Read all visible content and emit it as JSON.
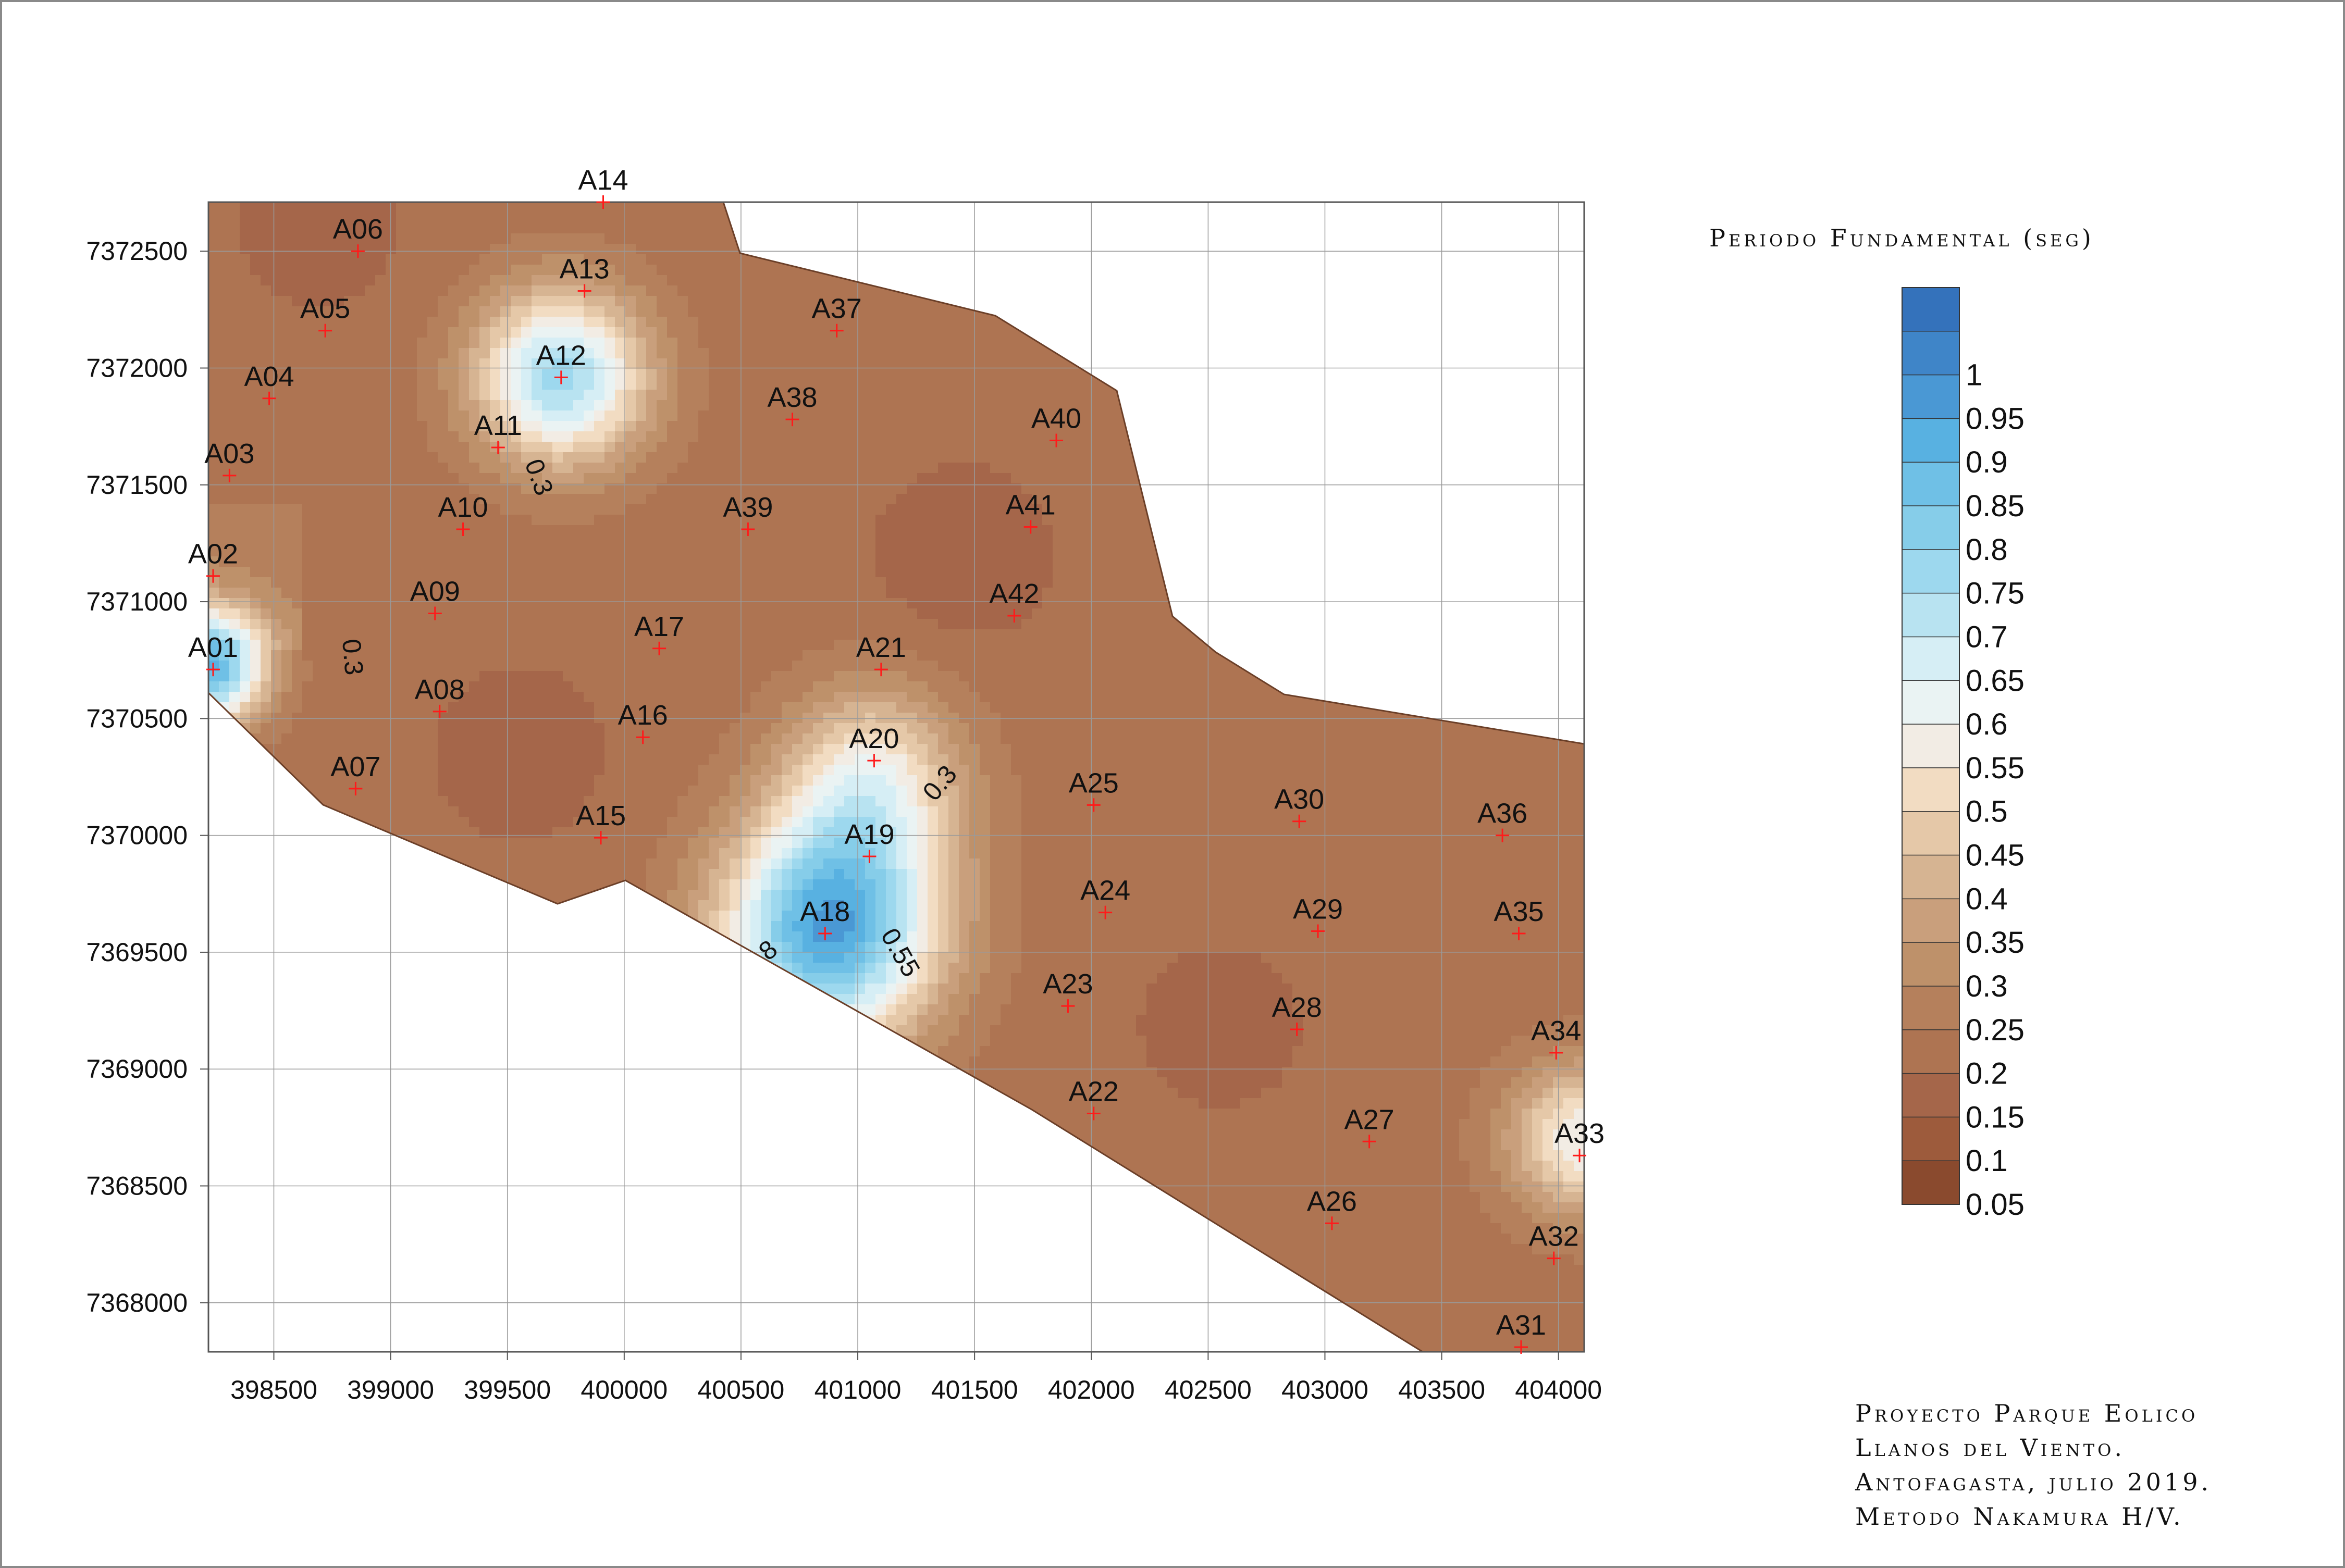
{
  "legend": {
    "title": "Periodo Fundamental (seg)",
    "levels": [
      "0.05",
      "0.1",
      "0.15",
      "0.2",
      "0.25",
      "0.3",
      "0.35",
      "0.4",
      "0.45",
      "0.5",
      "0.55",
      "0.6",
      "0.65",
      "0.7",
      "0.75",
      "0.8",
      "0.85",
      "0.9",
      "0.95",
      "1"
    ],
    "colors": [
      "#8a4a2e",
      "#9d5b3c",
      "#a5664a",
      "#ae7452",
      "#b5805c",
      "#be916a",
      "#c99f7c",
      "#d6b492",
      "#e5c8a8",
      "#f2dcc2",
      "#f2ece4",
      "#eaf3f3",
      "#d6eef5",
      "#b8e3f1",
      "#9dd8ee",
      "#86cde9",
      "#6fc0e6",
      "#58b1e1",
      "#4a98d4",
      "#3f85c8",
      "#3472bb"
    ]
  },
  "axes": {
    "x_ticks": [
      "398500",
      "399000",
      "399500",
      "400000",
      "400500",
      "401000",
      "401500",
      "402000",
      "402500",
      "403000",
      "403500",
      "404000"
    ],
    "y_ticks": [
      "7372500",
      "7372000",
      "7371500",
      "7371000",
      "7370500",
      "7370000",
      "7369500",
      "7369000",
      "7368500",
      "7368000"
    ]
  },
  "contour_labels": [
    {
      "text": "0.3",
      "e": 399600,
      "n": 7371520,
      "rot": 70
    },
    {
      "text": "0.3",
      "e": 398800,
      "n": 7370760,
      "rot": 85
    },
    {
      "text": "0.3",
      "e": 401380,
      "n": 7370200,
      "rot": -50
    },
    {
      "text": "0.55",
      "e": 401150,
      "n": 7369480,
      "rot": 60
    },
    {
      "text": "8",
      "e": 400640,
      "n": 7369480,
      "rot": -40
    }
  ],
  "stations": [
    {
      "id": "A01",
      "e": 398240,
      "n": 7370710
    },
    {
      "id": "A02",
      "e": 398240,
      "n": 7371110
    },
    {
      "id": "A03",
      "e": 398310,
      "n": 7371540
    },
    {
      "id": "A04",
      "e": 398480,
      "n": 7371870
    },
    {
      "id": "A05",
      "e": 398720,
      "n": 7372160
    },
    {
      "id": "A06",
      "e": 398860,
      "n": 7372500
    },
    {
      "id": "A07",
      "e": 398850,
      "n": 7370200
    },
    {
      "id": "A08",
      "e": 399210,
      "n": 7370530
    },
    {
      "id": "A09",
      "e": 399190,
      "n": 7370950
    },
    {
      "id": "A10",
      "e": 399310,
      "n": 7371310
    },
    {
      "id": "A11",
      "e": 399460,
      "n": 7371660
    },
    {
      "id": "A12",
      "e": 399730,
      "n": 7371960
    },
    {
      "id": "A13",
      "e": 399830,
      "n": 7372330
    },
    {
      "id": "A14",
      "e": 399910,
      "n": 7372710
    },
    {
      "id": "A15",
      "e": 399900,
      "n": 7369990
    },
    {
      "id": "A16",
      "e": 400080,
      "n": 7370420
    },
    {
      "id": "A17",
      "e": 400150,
      "n": 7370800
    },
    {
      "id": "A18",
      "e": 400860,
      "n": 7369580
    },
    {
      "id": "A19",
      "e": 401050,
      "n": 7369910
    },
    {
      "id": "A20",
      "e": 401070,
      "n": 7370320
    },
    {
      "id": "A21",
      "e": 401100,
      "n": 7370710
    },
    {
      "id": "A22",
      "e": 402010,
      "n": 7368810
    },
    {
      "id": "A23",
      "e": 401900,
      "n": 7369270
    },
    {
      "id": "A24",
      "e": 402060,
      "n": 7369670
    },
    {
      "id": "A25",
      "e": 402010,
      "n": 7370130
    },
    {
      "id": "A26",
      "e": 403030,
      "n": 7368340
    },
    {
      "id": "A27",
      "e": 403190,
      "n": 7368690
    },
    {
      "id": "A28",
      "e": 402880,
      "n": 7369170
    },
    {
      "id": "A29",
      "e": 402970,
      "n": 7369590
    },
    {
      "id": "A30",
      "e": 402890,
      "n": 7370060
    },
    {
      "id": "A31",
      "e": 403840,
      "n": 7367810
    },
    {
      "id": "A32",
      "e": 403980,
      "n": 7368190
    },
    {
      "id": "A33",
      "e": 404090,
      "n": 7368630
    },
    {
      "id": "A34",
      "e": 403990,
      "n": 7369070
    },
    {
      "id": "A35",
      "e": 403830,
      "n": 7369580
    },
    {
      "id": "A36",
      "e": 403760,
      "n": 7370000
    },
    {
      "id": "A37",
      "e": 400910,
      "n": 7372160
    },
    {
      "id": "A38",
      "e": 400720,
      "n": 7371780
    },
    {
      "id": "A39",
      "e": 400530,
      "n": 7371310
    },
    {
      "id": "A40",
      "e": 401850,
      "n": 7371690
    },
    {
      "id": "A41",
      "e": 401740,
      "n": 7371320
    },
    {
      "id": "A42",
      "e": 401670,
      "n": 7370940
    }
  ],
  "credits": [
    "Proyecto Parque Eolico",
    "Llanos del Viento.",
    "Antofagasta, julio 2019.",
    "Metodo Nakamura H/V."
  ]
}
